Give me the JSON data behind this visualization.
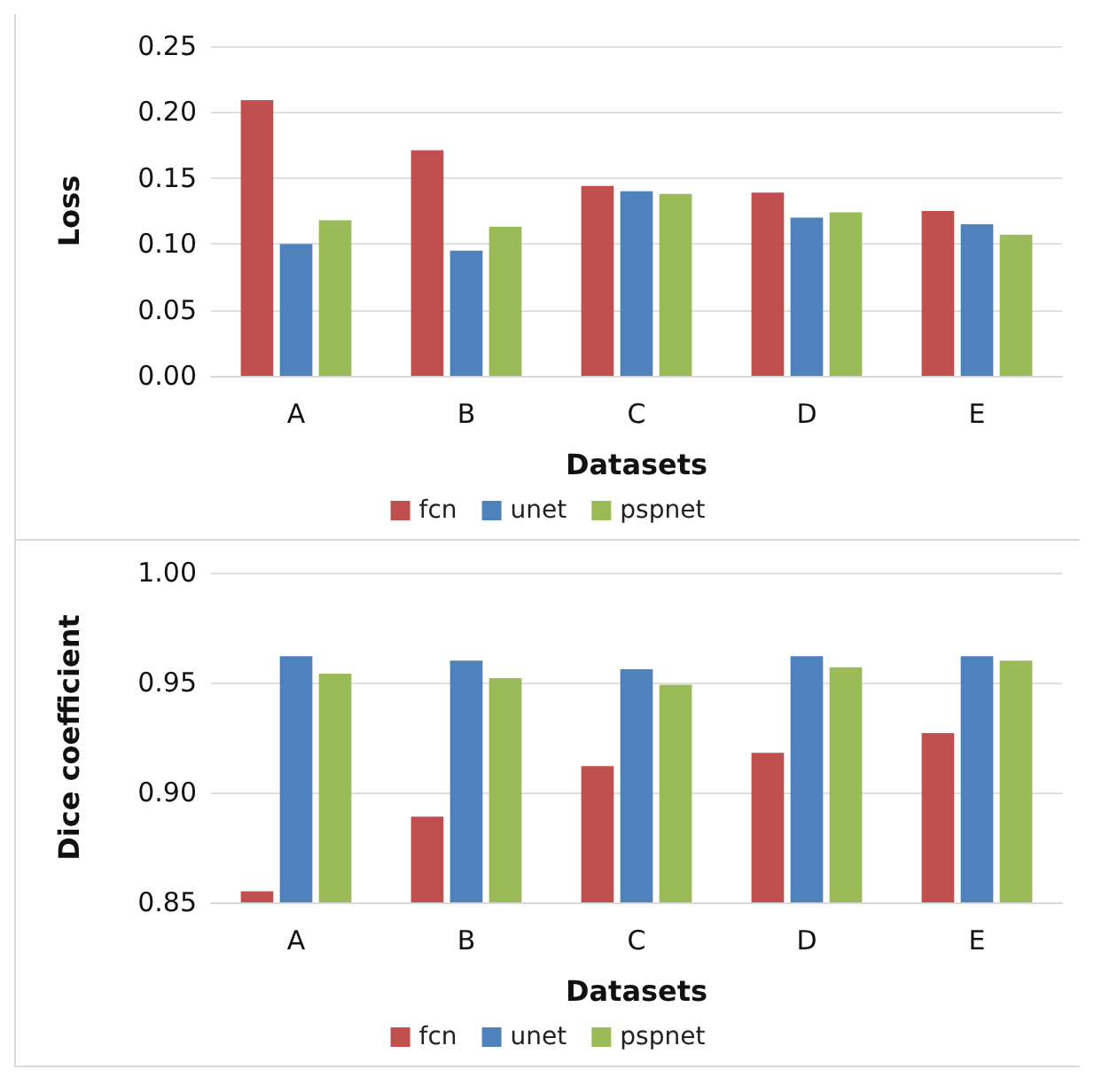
{
  "chart_data": [
    {
      "type": "bar",
      "xlabel": "Datasets",
      "ylabel": "Loss",
      "categories": [
        "A",
        "B",
        "C",
        "D",
        "E"
      ],
      "series": [
        {
          "name": "fcn",
          "color": "#c0504d",
          "values": [
            0.209,
            0.171,
            0.144,
            0.139,
            0.125
          ]
        },
        {
          "name": "unet",
          "color": "#4f81bd",
          "values": [
            0.1,
            0.095,
            0.14,
            0.12,
            0.115
          ]
        },
        {
          "name": "pspnet",
          "color": "#9bbb59",
          "values": [
            0.118,
            0.113,
            0.138,
            0.124,
            0.107
          ]
        }
      ],
      "ylim": [
        0,
        0.25
      ],
      "yticks": [
        {
          "value": 0,
          "label": "0.00"
        },
        {
          "value": 0.05,
          "label": "0.05"
        },
        {
          "value": 0.1,
          "label": "0.10"
        },
        {
          "value": 0.15,
          "label": "0.15"
        },
        {
          "value": 0.2,
          "label": "0.20"
        },
        {
          "value": 0.25,
          "label": "0.25"
        }
      ],
      "grid": "y",
      "legend": "bottom"
    },
    {
      "type": "bar",
      "xlabel": "Datasets",
      "ylabel": "Dice coefficient",
      "categories": [
        "A",
        "B",
        "C",
        "D",
        "E"
      ],
      "series": [
        {
          "name": "fcn",
          "color": "#c0504d",
          "values": [
            0.855,
            0.889,
            0.912,
            0.918,
            0.927
          ]
        },
        {
          "name": "unet",
          "color": "#4f81bd",
          "values": [
            0.962,
            0.96,
            0.956,
            0.962,
            0.962
          ]
        },
        {
          "name": "pspnet",
          "color": "#9bbb59",
          "values": [
            0.954,
            0.952,
            0.949,
            0.957,
            0.96
          ]
        }
      ],
      "ylim": [
        0.85,
        1.0
      ],
      "yticks": [
        {
          "value": 0.85,
          "label": "0.85"
        },
        {
          "value": 0.9,
          "label": "0.90"
        },
        {
          "value": 0.95,
          "label": "0.95"
        },
        {
          "value": 1.0,
          "label": "1.00"
        }
      ],
      "grid": "y",
      "legend": "bottom"
    }
  ]
}
